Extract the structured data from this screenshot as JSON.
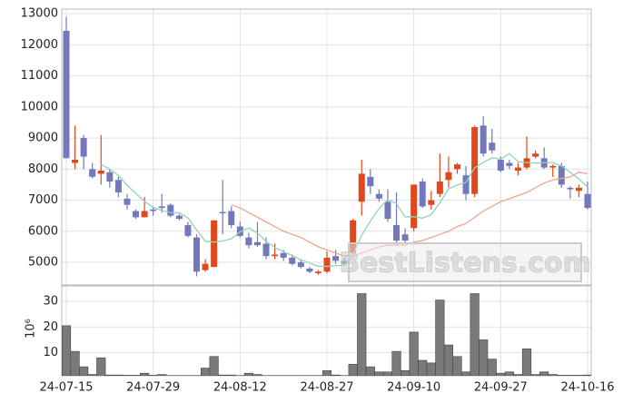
{
  "chart_data": [
    {
      "type": "candlestick",
      "watermark": "BestListens.com",
      "up_color": "#e2471c",
      "down_color": "#7377bb",
      "open": [
        12450,
        8200,
        9000,
        8000,
        7850,
        7900,
        7650,
        7050,
        6650,
        6450,
        6700,
        6800,
        6850,
        6500,
        6200,
        5800,
        4750,
        4850,
        6620,
        6650,
        6150,
        5800,
        5650,
        5600,
        5200,
        5300,
        5150,
        5000,
        4800,
        4650,
        4700,
        5200,
        5050,
        5300,
        6950,
        7750,
        7200,
        6950,
        6200,
        5900,
        6100,
        7600,
        6850,
        7200,
        7650,
        8000,
        7800,
        7200,
        9400,
        8850,
        8300,
        8200,
        7950,
        8050,
        8400,
        8350,
        8050,
        8100,
        7400,
        7300,
        7200
      ],
      "high": [
        12900,
        9400,
        9100,
        8200,
        9100,
        8000,
        7750,
        7200,
        6700,
        7100,
        6800,
        7200,
        6900,
        6550,
        6300,
        5900,
        5100,
        6350,
        7650,
        6800,
        6300,
        5950,
        6300,
        5800,
        5600,
        5400,
        5250,
        5100,
        4850,
        4750,
        5350,
        5400,
        5150,
        6400,
        8300,
        8000,
        7350,
        7350,
        7250,
        6100,
        7500,
        7700,
        7300,
        8500,
        8400,
        8200,
        8100,
        9400,
        9700,
        9300,
        8400,
        8300,
        8200,
        9050,
        8600,
        8700,
        8150,
        8200,
        7450,
        7500,
        7600
      ],
      "low": [
        8350,
        8000,
        8000,
        7700,
        7500,
        7400,
        7100,
        6700,
        6400,
        6450,
        6500,
        6600,
        6450,
        6350,
        5800,
        4550,
        4700,
        4850,
        5900,
        6100,
        5800,
        5450,
        5500,
        5100,
        5100,
        5050,
        4900,
        4800,
        4650,
        4600,
        4650,
        4950,
        4900,
        5250,
        6500,
        7200,
        6950,
        6300,
        5550,
        5600,
        6000,
        6750,
        6700,
        7100,
        7400,
        7850,
        7000,
        7100,
        8400,
        8500,
        7900,
        8000,
        7800,
        8000,
        8350,
        8000,
        7750,
        7400,
        7050,
        7100,
        6700
      ],
      "close": [
        8350,
        8300,
        8400,
        7750,
        7950,
        7600,
        7250,
        6850,
        6450,
        6650,
        6650,
        6750,
        6500,
        6400,
        5850,
        4700,
        4950,
        6350,
        6580,
        6200,
        5850,
        5550,
        5550,
        5200,
        5250,
        5150,
        4950,
        4850,
        4700,
        4700,
        5150,
        5050,
        4950,
        6350,
        7850,
        7450,
        7050,
        6400,
        5700,
        5700,
        7500,
        6800,
        7000,
        7600,
        7900,
        8150,
        7200,
        9350,
        8500,
        8600,
        7950,
        8100,
        8050,
        8350,
        8500,
        8050,
        8100,
        7500,
        7350,
        7400,
        6750
      ],
      "lines": [
        {
          "color": "#8fd4bb",
          "values": [
            null,
            null,
            null,
            null,
            8150,
            8000,
            7790,
            7480,
            7220,
            6960,
            6770,
            6670,
            6600,
            6590,
            6430,
            6040,
            5680,
            5650,
            5686,
            5756,
            5986,
            6106,
            5946,
            5670,
            5480,
            5340,
            5220,
            5080,
            4980,
            4870,
            4870,
            4890,
            4910,
            5240,
            5870,
            6330,
            6730,
            7020,
            6890,
            6460,
            6470,
            6420,
            6540,
            6920,
            7360,
            7490,
            7570,
            8040,
            8220,
            8360,
            8320,
            8500,
            8240,
            8210,
            8190,
            8210,
            8210,
            8100,
            7900,
            7680,
            7420
          ]
        },
        {
          "color": "#f0a58c",
          "values": [
            null,
            null,
            null,
            null,
            null,
            null,
            null,
            null,
            null,
            null,
            null,
            null,
            null,
            null,
            null,
            null,
            null,
            null,
            null,
            6850,
            6750,
            6600,
            6450,
            6300,
            6150,
            6000,
            5900,
            5800,
            5650,
            5500,
            5400,
            5300,
            5200,
            5200,
            5300,
            5400,
            5500,
            5550,
            5550,
            5550,
            5650,
            5700,
            5800,
            5900,
            6000,
            6150,
            6250,
            6450,
            6650,
            6800,
            6950,
            7050,
            7150,
            7250,
            7400,
            7550,
            7650,
            7700,
            7750,
            7900,
            7850
          ]
        }
      ],
      "ylim": [
        4270,
        13150
      ],
      "yticks": [
        5000,
        6000,
        7000,
        8000,
        9000,
        10000,
        11000,
        12000,
        13000
      ],
      "grid": true
    },
    {
      "type": "bar",
      "ylabel": "10⁶",
      "color": "#7a7a7a",
      "categories": [
        "24-07-15",
        null,
        null,
        null,
        null,
        null,
        null,
        null,
        null,
        null,
        "24-07-29",
        null,
        null,
        null,
        null,
        null,
        null,
        null,
        null,
        null,
        "24-08-12",
        null,
        null,
        null,
        null,
        null,
        null,
        null,
        null,
        null,
        "24-08-27",
        null,
        null,
        null,
        null,
        null,
        null,
        null,
        null,
        null,
        "24-09-10",
        null,
        null,
        null,
        null,
        null,
        null,
        null,
        null,
        null,
        "24-09-27",
        null,
        null,
        null,
        null,
        null,
        null,
        null,
        null,
        null,
        "24-10-16"
      ],
      "values": [
        20.5,
        10.5,
        4.5,
        1.5,
        8,
        1.3,
        1.3,
        1.2,
        1.2,
        2,
        1.2,
        1.5,
        1.1,
        1.1,
        1.1,
        1.1,
        4,
        8.5,
        1.3,
        1.3,
        1.1,
        2,
        1.5,
        1.1,
        1.1,
        1.1,
        1.1,
        1.1,
        1.1,
        1.1,
        3,
        1.3,
        1.1,
        5.5,
        33,
        4.5,
        2.5,
        2.5,
        10.5,
        3,
        18,
        7,
        6,
        30.5,
        13,
        8.5,
        2.5,
        33,
        15,
        7.5,
        2,
        2.5,
        1.5,
        11.5,
        1.5,
        2.5,
        1.5,
        1.2,
        1.2,
        1.2,
        1.3
      ],
      "ylim": [
        1,
        36
      ],
      "yticks": [
        10,
        20,
        30
      ],
      "grid": true
    }
  ]
}
